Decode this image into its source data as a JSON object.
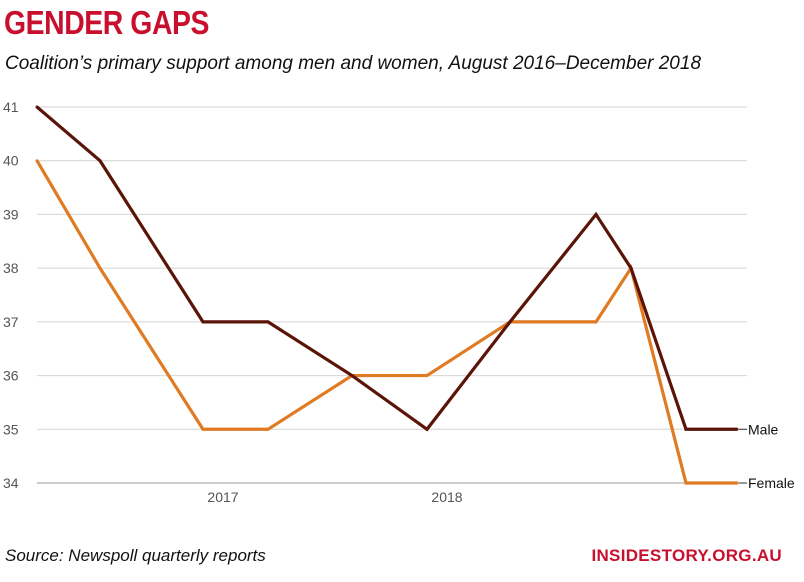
{
  "header": {
    "title": "GENDER GAPS",
    "subtitle": "Coalition’s primary support among men and women, August 2016–December 2018"
  },
  "footer": {
    "source": "Source: Newspoll quarterly reports",
    "brand": "INSIDESTORY.ORG.AU"
  },
  "chart_data": {
    "type": "line",
    "title": "",
    "xlabel": "",
    "ylabel": "",
    "x": [
      "2016-08",
      "2016-10",
      "2017-02",
      "2017-05",
      "2017-08",
      "2017-12",
      "2018-03",
      "2018-06",
      "2018-09",
      "2018-10",
      "2018-12"
    ],
    "x_ticks": [
      {
        "label": "2017",
        "at": "2017-02"
      },
      {
        "label": "2018",
        "at": "2017-12"
      }
    ],
    "ylim": [
      34,
      41
    ],
    "y_ticks": [
      34,
      35,
      36,
      37,
      38,
      39,
      40,
      41
    ],
    "grid": true,
    "legend": "direct labels at line ends",
    "series": [
      {
        "name": "Male",
        "color": "#5a1408",
        "values": [
          41,
          40,
          37,
          37,
          36,
          35,
          37,
          39,
          38,
          35,
          35
        ]
      },
      {
        "name": "Female",
        "color": "#e07b23",
        "values": [
          40,
          38,
          35,
          35,
          36,
          36,
          37,
          37,
          38,
          34,
          34
        ]
      }
    ]
  }
}
